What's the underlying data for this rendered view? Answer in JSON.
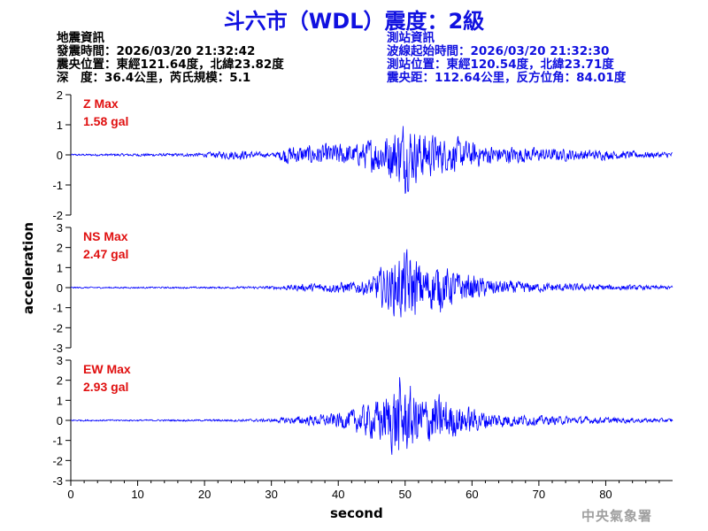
{
  "title": "斗六市（WDL）震度：2級",
  "event_info": {
    "heading": "地震資訊",
    "origin_time": "發震時間：2026/03/20 21:32:42",
    "epicenter": "震央位置：東經121.64度，北緯23.82度",
    "depth_magnitude": "深　度：36.4公里，芮氏規模：5.1"
  },
  "station_info": {
    "heading": "測站資訊",
    "waveform_start": "波線起始時間：2026/03/20 21:32:30",
    "station_location": "測站位置：東經120.54度，北緯23.71度",
    "distance_azimuth": "震央距：112.64公里，反方位角：84.01度"
  },
  "agency": "中央氣象署",
  "colors": {
    "trace": "#0000ff",
    "title": "#1010e0",
    "max_label": "#e01010",
    "axis": "#000000"
  },
  "chart_data": [
    {
      "type": "line",
      "component": "Z",
      "max_label": "Z Max",
      "max_value": "1.58 gal",
      "ylim": [
        -2,
        2
      ],
      "yticks": [
        -2,
        -1,
        0,
        1,
        2
      ],
      "x": [
        0,
        5,
        10,
        15,
        20,
        24,
        26,
        28,
        30,
        31,
        32,
        35,
        38,
        40,
        43,
        45,
        47,
        48,
        49,
        50,
        51,
        52,
        53,
        54,
        55,
        56,
        57,
        58,
        60,
        62,
        64,
        67,
        70,
        75,
        80,
        85,
        90
      ],
      "amplitude_envelope": [
        0.04,
        0.05,
        0.06,
        0.06,
        0.09,
        0.2,
        0.2,
        0.12,
        0.08,
        0.15,
        0.4,
        0.4,
        0.45,
        0.5,
        0.45,
        0.75,
        0.9,
        1.1,
        1.25,
        1.58,
        1.2,
        1.1,
        1.0,
        0.9,
        0.85,
        0.7,
        0.75,
        0.7,
        0.55,
        0.45,
        0.4,
        0.35,
        0.3,
        0.25,
        0.2,
        0.15,
        0.12
      ]
    },
    {
      "type": "line",
      "component": "NS",
      "max_label": "NS Max",
      "max_value": "2.47 gal",
      "ylim": [
        -3,
        3
      ],
      "yticks": [
        -3,
        -2,
        -1,
        0,
        1,
        2,
        3
      ],
      "x": [
        0,
        10,
        20,
        25,
        30,
        32,
        35,
        38,
        40,
        43,
        45,
        46,
        47,
        48,
        49,
        50,
        51,
        52,
        53,
        54,
        55,
        56,
        57,
        58,
        60,
        62,
        65,
        68,
        70,
        75,
        80,
        85,
        90
      ],
      "amplitude_envelope": [
        0.05,
        0.05,
        0.06,
        0.07,
        0.1,
        0.15,
        0.25,
        0.3,
        0.35,
        0.4,
        0.6,
        1.2,
        1.4,
        1.6,
        2.0,
        2.47,
        2.0,
        1.8,
        1.4,
        1.5,
        1.6,
        1.3,
        1.2,
        1.0,
        0.8,
        0.6,
        0.45,
        0.35,
        0.3,
        0.25,
        0.2,
        0.15,
        0.12
      ]
    },
    {
      "type": "line",
      "component": "EW",
      "max_label": "EW Max",
      "max_value": "2.93 gal",
      "ylim": [
        -3,
        3
      ],
      "yticks": [
        -3,
        -2,
        -1,
        0,
        1,
        2,
        3
      ],
      "x": [
        0,
        10,
        20,
        25,
        30,
        32,
        35,
        38,
        40,
        42,
        44,
        46,
        47,
        48,
        49,
        50,
        51,
        52,
        53,
        54,
        55,
        56,
        57,
        58,
        60,
        62,
        65,
        68,
        70,
        75,
        80,
        85,
        90
      ],
      "amplitude_envelope": [
        0.05,
        0.05,
        0.06,
        0.08,
        0.1,
        0.2,
        0.3,
        0.4,
        0.5,
        0.7,
        1.0,
        1.4,
        1.6,
        2.0,
        2.93,
        2.2,
        2.0,
        1.7,
        1.5,
        1.8,
        1.6,
        1.4,
        1.2,
        1.0,
        0.8,
        0.6,
        0.45,
        0.35,
        0.3,
        0.25,
        0.2,
        0.15,
        0.12
      ]
    }
  ],
  "xaxis": {
    "label": "second",
    "xlim": [
      0,
      90
    ],
    "ticks": [
      0,
      10,
      20,
      30,
      40,
      50,
      60,
      70,
      80
    ],
    "tick_labels": [
      "0",
      "10",
      "20",
      "30",
      "40",
      "50",
      "60",
      "70",
      "80"
    ]
  },
  "yaxis": {
    "label": "acceleration"
  }
}
